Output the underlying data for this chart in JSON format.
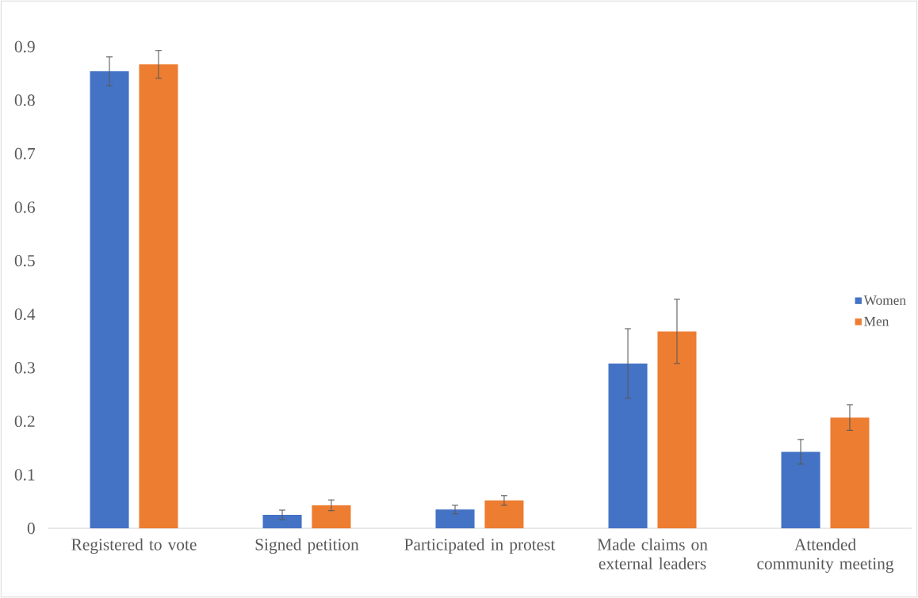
{
  "chart_data": {
    "type": "bar",
    "categories": [
      "Registered to vote",
      "Signed petition",
      "Participated in protest",
      "Made claims on external leaders",
      "Attended community meeting"
    ],
    "series": [
      {
        "name": "Women",
        "color": "#4472c4",
        "values": [
          0.854,
          0.025,
          0.035,
          0.308,
          0.143
        ],
        "errors": [
          0.027,
          0.009,
          0.008,
          0.065,
          0.023
        ]
      },
      {
        "name": "Men",
        "color": "#ed7d31",
        "values": [
          0.867,
          0.043,
          0.052,
          0.368,
          0.207
        ],
        "errors": [
          0.026,
          0.01,
          0.009,
          0.06,
          0.024
        ]
      }
    ],
    "ylim": [
      0,
      0.9
    ],
    "yticks": [
      0,
      0.1,
      0.2,
      0.3,
      0.4,
      0.5,
      0.6,
      0.7,
      0.8,
      0.9
    ],
    "grid": false,
    "legend": "right"
  }
}
